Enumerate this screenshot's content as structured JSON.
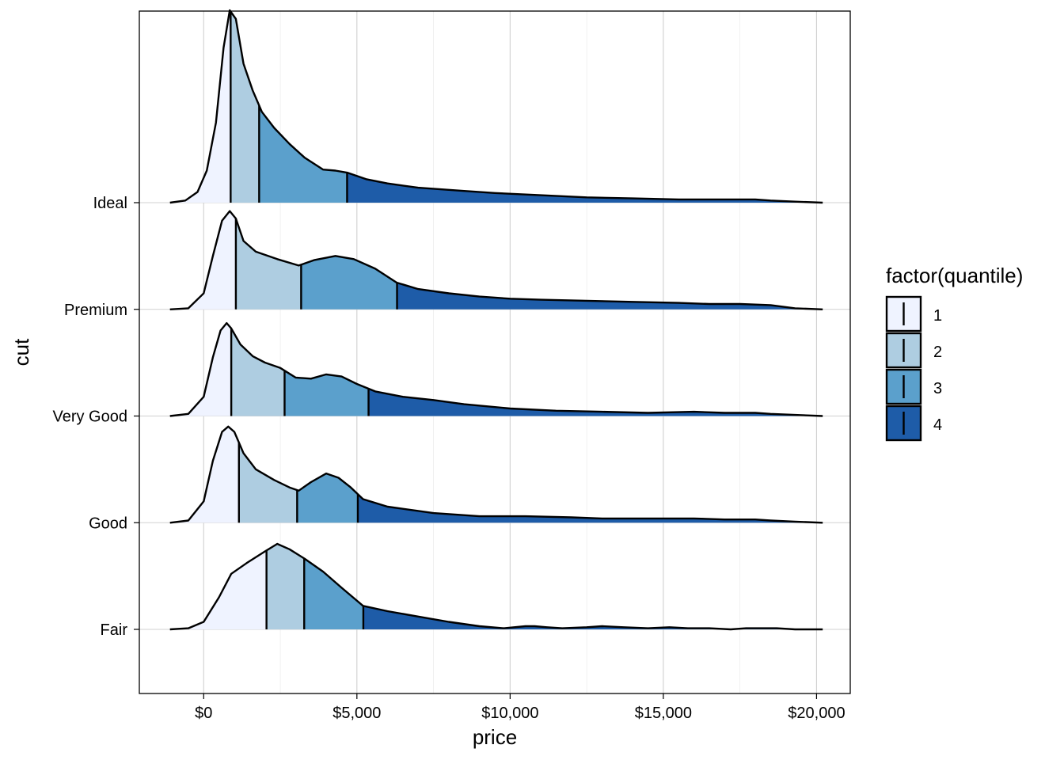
{
  "chart_data": {
    "type": "ridgeline density",
    "xlabel": "price",
    "ylabel": "cut",
    "xlim": [
      -2100,
      21100
    ],
    "x_ticks": [
      0,
      5000,
      10000,
      15000,
      20000
    ],
    "x_tick_labels": [
      "$0",
      "$5,000",
      "$10,000",
      "$15,000",
      "$20,000"
    ],
    "minor_x_grid": [
      2500,
      7500,
      12500,
      17500
    ],
    "categories": [
      "Fair",
      "Good",
      "Very Good",
      "Premium",
      "Ideal"
    ],
    "ridge_scale_units": 135,
    "legend": {
      "title": "factor(quantile)",
      "position": "right",
      "entries": [
        {
          "label": "1",
          "color": "#eff3ff"
        },
        {
          "label": "2",
          "color": "#aecde1"
        },
        {
          "label": "3",
          "color": "#5ba0cc"
        },
        {
          "label": "4",
          "color": "#1e5ca8"
        }
      ]
    },
    "series": [
      {
        "name": "Fair",
        "quantiles": [
          2050,
          3280,
          5210
        ],
        "density": [
          [
            -1100,
            0
          ],
          [
            -500,
            0.01
          ],
          [
            0,
            0.07
          ],
          [
            500,
            0.3
          ],
          [
            900,
            0.52
          ],
          [
            1400,
            0.62
          ],
          [
            2000,
            0.73
          ],
          [
            2400,
            0.8
          ],
          [
            2800,
            0.75
          ],
          [
            3300,
            0.66
          ],
          [
            3900,
            0.54
          ],
          [
            4500,
            0.39
          ],
          [
            5200,
            0.22
          ],
          [
            6000,
            0.17
          ],
          [
            7000,
            0.12
          ],
          [
            8000,
            0.07
          ],
          [
            9000,
            0.03
          ],
          [
            9800,
            0.01
          ],
          [
            10500,
            0.03
          ],
          [
            10800,
            0.03
          ],
          [
            11200,
            0.02
          ],
          [
            11700,
            0.01
          ],
          [
            12500,
            0.02
          ],
          [
            13000,
            0.03
          ],
          [
            13700,
            0.02
          ],
          [
            14500,
            0.01
          ],
          [
            15200,
            0.02
          ],
          [
            15800,
            0.01
          ],
          [
            16500,
            0.01
          ],
          [
            17200,
            0,
            0
          ],
          [
            17700,
            0.01
          ],
          [
            18200,
            0.01
          ],
          [
            18700,
            0.01
          ],
          [
            19300,
            0
          ],
          [
            20200,
            0
          ]
        ]
      },
      {
        "name": "Good",
        "quantiles": [
          1150,
          3050,
          5030
        ],
        "density": [
          [
            -1100,
            0
          ],
          [
            -500,
            0.02
          ],
          [
            0,
            0.2
          ],
          [
            300,
            0.58
          ],
          [
            600,
            0.85
          ],
          [
            800,
            0.9
          ],
          [
            1000,
            0.85
          ],
          [
            1300,
            0.65
          ],
          [
            1700,
            0.5
          ],
          [
            2300,
            0.4
          ],
          [
            2800,
            0.33
          ],
          [
            3100,
            0.3
          ],
          [
            3500,
            0.38
          ],
          [
            4000,
            0.46
          ],
          [
            4400,
            0.42
          ],
          [
            4800,
            0.33
          ],
          [
            5200,
            0.22
          ],
          [
            6000,
            0.15
          ],
          [
            7500,
            0.09
          ],
          [
            9000,
            0.06
          ],
          [
            10500,
            0.06
          ],
          [
            12000,
            0.05
          ],
          [
            13000,
            0.04
          ],
          [
            14500,
            0.04
          ],
          [
            16000,
            0.04
          ],
          [
            17000,
            0.03
          ],
          [
            18000,
            0.03
          ],
          [
            18500,
            0.02
          ],
          [
            19300,
            0.01
          ],
          [
            20200,
            0
          ]
        ]
      },
      {
        "name": "Very Good",
        "quantiles": [
          900,
          2640,
          5380
        ],
        "density": [
          [
            -1100,
            0
          ],
          [
            -500,
            0.02
          ],
          [
            0,
            0.18
          ],
          [
            300,
            0.55
          ],
          [
            550,
            0.8
          ],
          [
            750,
            0.87
          ],
          [
            900,
            0.82
          ],
          [
            1200,
            0.67
          ],
          [
            1600,
            0.56
          ],
          [
            2000,
            0.5
          ],
          [
            2500,
            0.45
          ],
          [
            3000,
            0.36
          ],
          [
            3500,
            0.35
          ],
          [
            4000,
            0.39
          ],
          [
            4500,
            0.37
          ],
          [
            5000,
            0.3
          ],
          [
            5600,
            0.23
          ],
          [
            6500,
            0.18
          ],
          [
            7500,
            0.15
          ],
          [
            8500,
            0.11
          ],
          [
            10000,
            0.07
          ],
          [
            11500,
            0.05
          ],
          [
            13000,
            0.04
          ],
          [
            14500,
            0.03
          ],
          [
            16000,
            0.04
          ],
          [
            17000,
            0.03
          ],
          [
            18000,
            0.03
          ],
          [
            18500,
            0.02
          ],
          [
            19300,
            0.01
          ],
          [
            20200,
            0
          ]
        ]
      },
      {
        "name": "Premium",
        "quantiles": [
          1050,
          3180,
          6310
        ],
        "density": [
          [
            -1100,
            0
          ],
          [
            -500,
            0.01
          ],
          [
            0,
            0.15
          ],
          [
            300,
            0.5
          ],
          [
            600,
            0.83
          ],
          [
            850,
            0.92
          ],
          [
            1050,
            0.85
          ],
          [
            1300,
            0.64
          ],
          [
            1700,
            0.54
          ],
          [
            2400,
            0.47
          ],
          [
            3100,
            0.41
          ],
          [
            3600,
            0.46
          ],
          [
            4300,
            0.5
          ],
          [
            4900,
            0.47
          ],
          [
            5600,
            0.38
          ],
          [
            6300,
            0.25
          ],
          [
            7000,
            0.19
          ],
          [
            8000,
            0.15
          ],
          [
            9000,
            0.12
          ],
          [
            10000,
            0.1
          ],
          [
            11000,
            0.09
          ],
          [
            12500,
            0.08
          ],
          [
            14000,
            0.07
          ],
          [
            15500,
            0.06
          ],
          [
            16500,
            0.05
          ],
          [
            17500,
            0.05
          ],
          [
            18500,
            0.04
          ],
          [
            19300,
            0.01
          ],
          [
            20200,
            0
          ]
        ]
      },
      {
        "name": "Ideal",
        "quantiles": [
          880,
          1810,
          4680
        ],
        "density": [
          [
            -1100,
            0
          ],
          [
            -600,
            0.02
          ],
          [
            -200,
            0.1
          ],
          [
            100,
            0.3
          ],
          [
            400,
            0.75
          ],
          [
            650,
            1.45
          ],
          [
            850,
            1.8
          ],
          [
            1050,
            1.72
          ],
          [
            1300,
            1.3
          ],
          [
            1600,
            1.05
          ],
          [
            1900,
            0.85
          ],
          [
            2300,
            0.7
          ],
          [
            2800,
            0.55
          ],
          [
            3300,
            0.42
          ],
          [
            3900,
            0.31
          ],
          [
            4300,
            0.3
          ],
          [
            4700,
            0.28
          ],
          [
            5300,
            0.22
          ],
          [
            6000,
            0.18
          ],
          [
            7000,
            0.14
          ],
          [
            8500,
            0.11
          ],
          [
            9500,
            0.09
          ],
          [
            11000,
            0.07
          ],
          [
            12500,
            0.05
          ],
          [
            14000,
            0.04
          ],
          [
            15500,
            0.03
          ],
          [
            17000,
            0.03
          ],
          [
            18000,
            0.03
          ],
          [
            18500,
            0.02
          ],
          [
            19300,
            0.01
          ],
          [
            20200,
            0
          ]
        ]
      }
    ]
  }
}
